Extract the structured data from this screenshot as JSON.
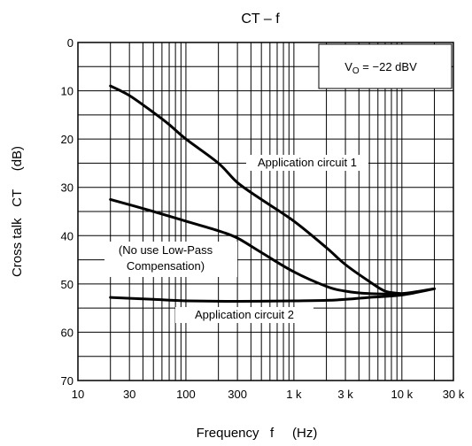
{
  "chart_data": {
    "type": "line",
    "title": "CT – f",
    "xlabel": "Frequency   f     (Hz)",
    "ylabel": "Cross talk   CT     (dB)",
    "x_scale": "log",
    "xlim": [
      10,
      30000
    ],
    "ylim": [
      0,
      70
    ],
    "y_inverted": true,
    "grid": true,
    "x_ticks": [
      {
        "value": 10,
        "label": "10"
      },
      {
        "value": 30,
        "label": "30"
      },
      {
        "value": 100,
        "label": "100"
      },
      {
        "value": 300,
        "label": "300"
      },
      {
        "value": 1000,
        "label": "1 k"
      },
      {
        "value": 3000,
        "label": "3 k"
      },
      {
        "value": 10000,
        "label": "10 k"
      },
      {
        "value": 30000,
        "label": "30 k"
      }
    ],
    "y_ticks": [
      {
        "value": 0,
        "label": "0"
      },
      {
        "value": 10,
        "label": "10"
      },
      {
        "value": 20,
        "label": "20"
      },
      {
        "value": 30,
        "label": "30"
      },
      {
        "value": 40,
        "label": "40"
      },
      {
        "value": 50,
        "label": "50"
      },
      {
        "value": 60,
        "label": "60"
      },
      {
        "value": 70,
        "label": "70"
      }
    ],
    "condition_box": {
      "v_main": "V",
      "v_sub": "O",
      "rest": " = −22 dBV"
    },
    "series": [
      {
        "x": [
          20,
          30,
          50,
          70,
          100,
          200,
          300,
          500,
          1000,
          2000,
          3000,
          5000,
          7000,
          10000
        ],
        "y": [
          9,
          11,
          14.5,
          17,
          20,
          25,
          29,
          32.5,
          37,
          42.5,
          46,
          49.5,
          51.5,
          52
        ]
      },
      {
        "x": [
          20,
          50,
          100,
          200,
          300,
          500,
          1000,
          2000,
          3000,
          5000,
          10000,
          20000
        ],
        "y": [
          32.5,
          35,
          37,
          39,
          40.5,
          43.5,
          47.5,
          50.5,
          51.5,
          52,
          52,
          51
        ]
      },
      {
        "x": [
          20,
          50,
          100,
          300,
          1000,
          2000,
          3000,
          5000,
          10000,
          20000
        ],
        "y": [
          52.8,
          53.2,
          53.5,
          53.6,
          53.5,
          53.4,
          53.2,
          52.8,
          52.3,
          51
        ]
      }
    ],
    "annotations": [
      {
        "text": "Application circuit 1"
      },
      {
        "text": "(No use Low-Pass"
      },
      {
        "text": "Compensation)"
      },
      {
        "text": "Application circuit 2"
      }
    ]
  }
}
